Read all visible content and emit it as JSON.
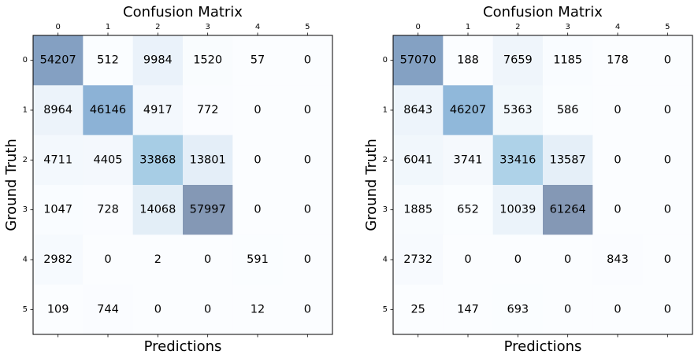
{
  "chart_data": [
    {
      "type": "heatmap",
      "title": "Confusion Matrix",
      "xlabel": "Predictions",
      "ylabel": "Ground Truth",
      "x_ticks": [
        "0",
        "1",
        "2",
        "3",
        "4",
        "5"
      ],
      "y_ticks": [
        "0",
        "1",
        "2",
        "3",
        "4",
        "5"
      ],
      "colormap": "Blues",
      "alpha": 0.5,
      "values": [
        [
          54207,
          512,
          9984,
          1520,
          57,
          0
        ],
        [
          8964,
          46146,
          4917,
          772,
          0,
          0
        ],
        [
          4711,
          4405,
          33868,
          13801,
          0,
          0
        ],
        [
          1047,
          728,
          14068,
          57997,
          0,
          0
        ],
        [
          2982,
          0,
          2,
          0,
          591,
          0
        ],
        [
          109,
          744,
          0,
          0,
          12,
          0
        ]
      ]
    },
    {
      "type": "heatmap",
      "title": "Confusion Matrix",
      "xlabel": "Predictions",
      "ylabel": "Ground Truth",
      "x_ticks": [
        "0",
        "1",
        "2",
        "3",
        "4",
        "5"
      ],
      "y_ticks": [
        "0",
        "1",
        "2",
        "3",
        "4",
        "5"
      ],
      "colormap": "Blues",
      "alpha": 0.5,
      "values": [
        [
          57070,
          188,
          7659,
          1185,
          178,
          0
        ],
        [
          8643,
          46207,
          5363,
          586,
          0,
          0
        ],
        [
          6041,
          3741,
          33416,
          13587,
          0,
          0
        ],
        [
          1885,
          652,
          10039,
          61264,
          0,
          0
        ],
        [
          2732,
          0,
          0,
          0,
          843,
          0
        ],
        [
          25,
          147,
          693,
          0,
          0,
          0
        ]
      ]
    }
  ]
}
